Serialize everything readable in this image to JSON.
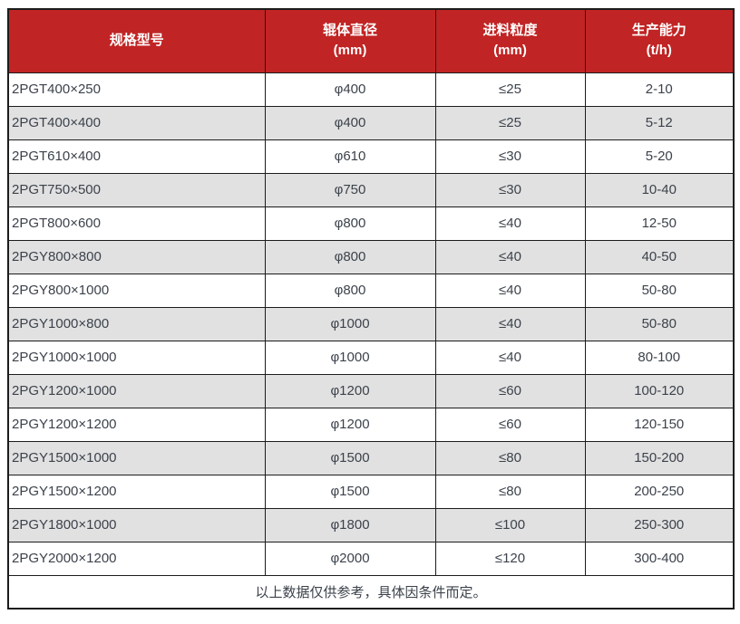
{
  "chart_data": {
    "type": "table",
    "title": "",
    "columns": [
      {
        "label": "规格型号",
        "unit": ""
      },
      {
        "label": "辊体直径",
        "unit": "(mm)"
      },
      {
        "label": "进料粒度",
        "unit": "(mm)"
      },
      {
        "label": "生产能力",
        "unit": "(t/h)"
      }
    ],
    "rows": [
      [
        "2PGT400×250",
        "φ400",
        "≤25",
        "2-10"
      ],
      [
        "2PGT400×400",
        "φ400",
        "≤25",
        "5-12"
      ],
      [
        "2PGT610×400",
        "φ610",
        "≤30",
        "5-20"
      ],
      [
        "2PGT750×500",
        "φ750",
        "≤30",
        "10-40"
      ],
      [
        "2PGT800×600",
        "φ800",
        "≤40",
        "12-50"
      ],
      [
        "2PGY800×800",
        "φ800",
        "≤40",
        "40-50"
      ],
      [
        "2PGY800×1000",
        "φ800",
        "≤40",
        "50-80"
      ],
      [
        "2PGY1000×800",
        "φ1000",
        "≤40",
        "50-80"
      ],
      [
        "2PGY1000×1000",
        "φ1000",
        "≤40",
        "80-100"
      ],
      [
        "2PGY1200×1000",
        "φ1200",
        "≤60",
        "100-120"
      ],
      [
        "2PGY1200×1200",
        "φ1200",
        "≤60",
        "120-150"
      ],
      [
        "2PGY1500×1000",
        "φ1500",
        "≤80",
        "150-200"
      ],
      [
        "2PGY1500×1200",
        "φ1500",
        "≤80",
        "200-250"
      ],
      [
        "2PGY1800×1000",
        "φ1800",
        "≤100",
        "250-300"
      ],
      [
        "2PGY2000×1200",
        "φ2000",
        "≤120",
        "300-400"
      ]
    ],
    "footnote": "以上数据仅供参考，具体因条件而定。",
    "layout": {
      "striped": true,
      "stripe_pattern": "even-rows-gray",
      "header_lines": 2
    }
  },
  "colors": {
    "header_bg": "#c12424",
    "header_text": "#ffffff",
    "row_bg": "#ffffff",
    "row_alt_bg": "#e1e1e1",
    "border": "#1c1c1c",
    "cell_text": "#3c424b"
  }
}
